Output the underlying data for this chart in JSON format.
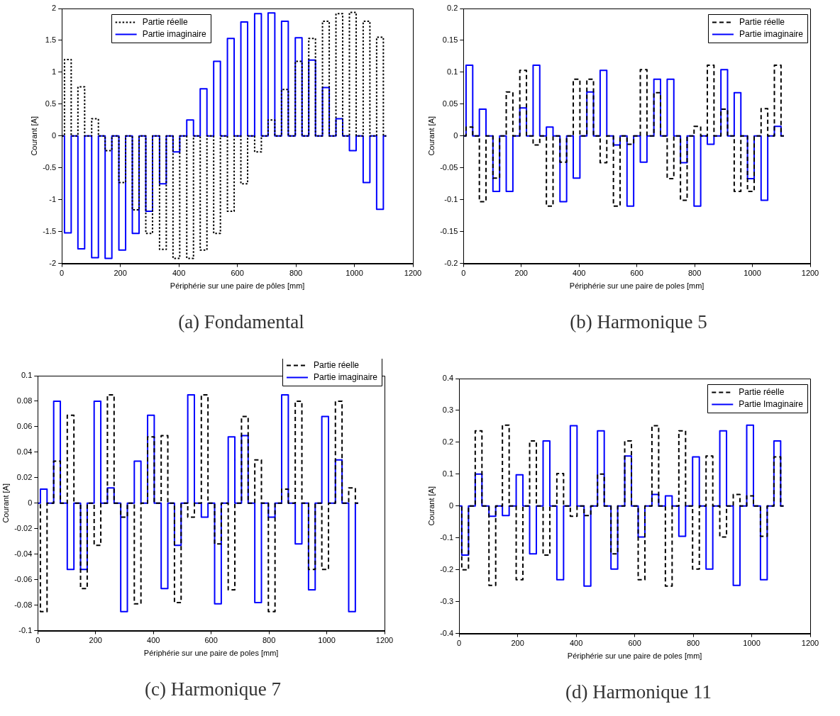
{
  "chart_data": [
    {
      "type": "step",
      "xlabel": "Périphérie sur une paire de pôles [mm]",
      "ylabel": "Courant [A]",
      "annotations": [
        "(a) Fondamental"
      ],
      "legend": "top left",
      "x": [
        0,
        9,
        32,
        55,
        78,
        102,
        125,
        148,
        171,
        195,
        218,
        241,
        264,
        287,
        310,
        334,
        357,
        380,
        403,
        427,
        450,
        473,
        496,
        519,
        542,
        566,
        589,
        612,
        635,
        659,
        682,
        705,
        728,
        751,
        774,
        798,
        821,
        844,
        867,
        891,
        914,
        937,
        960,
        983,
        1006,
        1030,
        1053,
        1076,
        1099,
        1109
      ],
      "xlim": [
        0,
        1200
      ],
      "xticks": [
        0,
        200,
        400,
        600,
        800,
        1000,
        1200
      ],
      "ylim": [
        -2,
        2
      ],
      "yticks": [
        -2,
        -1.5,
        -1,
        -0.5,
        0,
        0.5,
        1,
        1.5,
        2
      ],
      "series": [
        {
          "name": "Partie réelle",
          "color": "#000000",
          "line_style": "dotted",
          "values": [
            0,
            1.2,
            0,
            0.77,
            0,
            0.27,
            0,
            -0.23,
            0,
            -0.73,
            0,
            -1.16,
            0,
            -1.53,
            0,
            -1.78,
            0,
            -1.92,
            0,
            -1.92,
            0,
            -1.79,
            0,
            -1.53,
            0,
            -1.18,
            0,
            -0.75,
            0,
            -0.25,
            0,
            0.25,
            0,
            0.73,
            0,
            1.17,
            0,
            1.53,
            0,
            1.8,
            0,
            1.92,
            0,
            1.94,
            0,
            1.8,
            0,
            1.55,
            0,
            0
          ]
        },
        {
          "name": "Partie imaginaire",
          "color": "#0000ff",
          "line_style": "solid",
          "values": [
            0,
            -1.52,
            0,
            -1.77,
            0,
            -1.91,
            0,
            -1.92,
            0,
            -1.79,
            0,
            -1.53,
            0,
            -1.18,
            0,
            -0.75,
            0,
            -0.25,
            0,
            0.25,
            0,
            0.74,
            0,
            1.17,
            0,
            1.53,
            0,
            1.79,
            0,
            1.92,
            0,
            1.93,
            0,
            1.8,
            0,
            1.54,
            0,
            1.19,
            0,
            0.76,
            0,
            0.27,
            0,
            -0.23,
            0,
            -0.73,
            0,
            -1.15,
            0,
            0
          ]
        }
      ]
    },
    {
      "type": "step",
      "xlabel": "Périphérie sur une paire de poles [mm]",
      "ylabel": "Courant [A]",
      "annotations": [
        "(b) Harmonique 5"
      ],
      "legend": "top right",
      "x": [
        0,
        9,
        32,
        55,
        78,
        102,
        125,
        148,
        171,
        195,
        218,
        241,
        264,
        287,
        310,
        334,
        357,
        380,
        403,
        427,
        450,
        473,
        496,
        519,
        542,
        566,
        589,
        612,
        635,
        659,
        682,
        705,
        728,
        751,
        774,
        798,
        821,
        844,
        867,
        891,
        914,
        937,
        960,
        983,
        1006,
        1030,
        1053,
        1076,
        1099,
        1109
      ],
      "xlim": [
        0,
        1200
      ],
      "xticks": [
        0,
        200,
        400,
        600,
        800,
        1000,
        1200
      ],
      "ylim": [
        -0.2,
        0.2
      ],
      "yticks": [
        -0.2,
        -0.15,
        -0.1,
        -0.05,
        0,
        0.05,
        0.1,
        0.15,
        0.2
      ],
      "series": [
        {
          "name": "Partie réelle",
          "color": "#000000",
          "line_style": "dashed",
          "values": [
            0,
            0.014,
            0,
            -0.103,
            0,
            -0.066,
            0,
            0.069,
            0,
            0.103,
            0,
            -0.014,
            0,
            -0.11,
            0,
            -0.041,
            0,
            0.089,
            0,
            0.089,
            0,
            -0.042,
            0,
            -0.11,
            0,
            -0.013,
            0,
            0.104,
            0,
            0.068,
            0,
            -0.067,
            0,
            -0.101,
            0,
            0.015,
            0,
            0.111,
            0,
            0.042,
            0,
            -0.087,
            0,
            -0.087,
            0,
            0.043,
            0,
            0.111,
            0,
            0
          ]
        },
        {
          "name": "Partie imaginaire",
          "color": "#0000ff",
          "line_style": "solid",
          "values": [
            0,
            0.111,
            0,
            0.042,
            0,
            -0.087,
            0,
            -0.087,
            0,
            0.044,
            0,
            0.111,
            0,
            0.014,
            0,
            -0.103,
            0,
            -0.066,
            0,
            0.069,
            0,
            0.103,
            0,
            -0.014,
            0,
            -0.11,
            0,
            -0.041,
            0,
            0.089,
            0,
            0.089,
            0,
            -0.042,
            0,
            -0.11,
            0,
            -0.013,
            0,
            0.104,
            0,
            0.068,
            0,
            -0.067,
            0,
            -0.101,
            0,
            0.015,
            0,
            0
          ]
        }
      ]
    },
    {
      "type": "step",
      "xlabel": "Périphérie sur une paire de poles [mm]",
      "ylabel": "Courant [A]",
      "annotations": [
        "(c) Harmonique 7"
      ],
      "legend": "top right",
      "x": [
        0,
        9,
        32,
        55,
        78,
        102,
        125,
        148,
        171,
        195,
        218,
        241,
        264,
        287,
        310,
        334,
        357,
        380,
        403,
        427,
        450,
        473,
        496,
        519,
        542,
        566,
        589,
        612,
        635,
        659,
        682,
        705,
        728,
        751,
        774,
        798,
        821,
        844,
        867,
        891,
        914,
        937,
        960,
        983,
        1006,
        1030,
        1053,
        1076,
        1099,
        1109
      ],
      "xlim": [
        0,
        1200
      ],
      "xticks": [
        0,
        200,
        400,
        600,
        800,
        1000,
        1200
      ],
      "ylim": [
        -0.1,
        0.1
      ],
      "yticks": [
        -0.1,
        -0.08,
        -0.06,
        -0.04,
        -0.02,
        0,
        0.02,
        0.04,
        0.06,
        0.08,
        0.1
      ],
      "series": [
        {
          "name": "Partie réelle",
          "color": "#000000",
          "line_style": "dashed",
          "values": [
            0,
            -0.085,
            0,
            0.033,
            0,
            0.069,
            0,
            -0.067,
            0,
            -0.033,
            0,
            0.085,
            0,
            -0.011,
            0,
            -0.079,
            0,
            0.052,
            0,
            0.053,
            0,
            -0.078,
            0,
            -0.011,
            0,
            0.085,
            0,
            -0.032,
            0,
            -0.068,
            0,
            0.068,
            0,
            0.034,
            0,
            -0.085,
            0,
            0.011,
            0,
            0.08,
            0,
            -0.052,
            0,
            -0.052,
            0,
            0.08,
            0,
            0.012,
            0,
            0
          ]
        },
        {
          "name": "Partie imaginaire",
          "color": "#0000ff",
          "line_style": "solid",
          "values": [
            0,
            0.011,
            0,
            0.08,
            0,
            -0.052,
            0,
            -0.052,
            0,
            0.08,
            0,
            0.012,
            0,
            -0.085,
            0,
            0.033,
            0,
            0.069,
            0,
            -0.067,
            0,
            -0.033,
            0,
            0.085,
            0,
            -0.011,
            0,
            -0.079,
            0,
            0.052,
            0,
            0.053,
            0,
            -0.078,
            0,
            -0.011,
            0,
            0.085,
            0,
            -0.032,
            0,
            -0.068,
            0,
            0.068,
            0,
            0.034,
            0,
            -0.085,
            0,
            0
          ]
        }
      ]
    },
    {
      "type": "step",
      "xlabel": "Périphérie sur une paire de poles [mm]",
      "ylabel": "Courant [A]",
      "annotations": [
        "(d) Harmonique 11"
      ],
      "legend": "top right",
      "x": [
        0,
        9,
        32,
        55,
        78,
        102,
        125,
        148,
        171,
        195,
        218,
        241,
        264,
        287,
        310,
        334,
        357,
        380,
        403,
        427,
        450,
        473,
        496,
        519,
        542,
        566,
        589,
        612,
        635,
        659,
        682,
        705,
        728,
        751,
        774,
        798,
        821,
        844,
        867,
        891,
        914,
        937,
        960,
        983,
        1006,
        1030,
        1053,
        1076,
        1099,
        1109
      ],
      "xlim": [
        0,
        1200
      ],
      "xticks": [
        0,
        200,
        400,
        600,
        800,
        1000,
        1200
      ],
      "ylim": [
        -0.4,
        0.4
      ],
      "yticks": [
        -0.4,
        -0.3,
        -0.2,
        -0.1,
        0,
        0.1,
        0.2,
        0.3,
        0.4
      ],
      "series": [
        {
          "name": "Partie réelle",
          "color": "#000000",
          "line_style": "dashed",
          "values": [
            0,
            -0.2,
            0,
            0.236,
            0,
            -0.249,
            0,
            0.254,
            0,
            -0.231,
            0,
            0.204,
            0,
            -0.154,
            0,
            0.102,
            0,
            -0.032,
            0,
            -0.03,
            0,
            0.1,
            0,
            -0.15,
            0,
            0.204,
            0,
            -0.231,
            0,
            0.252,
            0,
            -0.251,
            0,
            0.236,
            0,
            -0.198,
            0,
            0.157,
            0,
            -0.097,
            0,
            0.036,
            0,
            0.032,
            0,
            -0.095,
            0,
            0.154,
            0,
            0
          ]
        },
        {
          "name": "Partie Imaginaire",
          "color": "#0000ff",
          "line_style": "solid",
          "values": [
            0,
            -0.154,
            0,
            0.1,
            0,
            -0.032,
            0,
            -0.03,
            0,
            0.098,
            0,
            -0.15,
            0,
            0.204,
            0,
            -0.231,
            0,
            0.252,
            0,
            -0.251,
            0,
            0.236,
            0,
            -0.198,
            0,
            0.157,
            0,
            -0.097,
            0,
            0.036,
            0,
            0.032,
            0,
            -0.095,
            0,
            0.154,
            0,
            -0.198,
            0,
            0.236,
            0,
            -0.249,
            0,
            0.254,
            0,
            -0.231,
            0,
            0.204,
            0,
            0
          ]
        }
      ]
    }
  ]
}
